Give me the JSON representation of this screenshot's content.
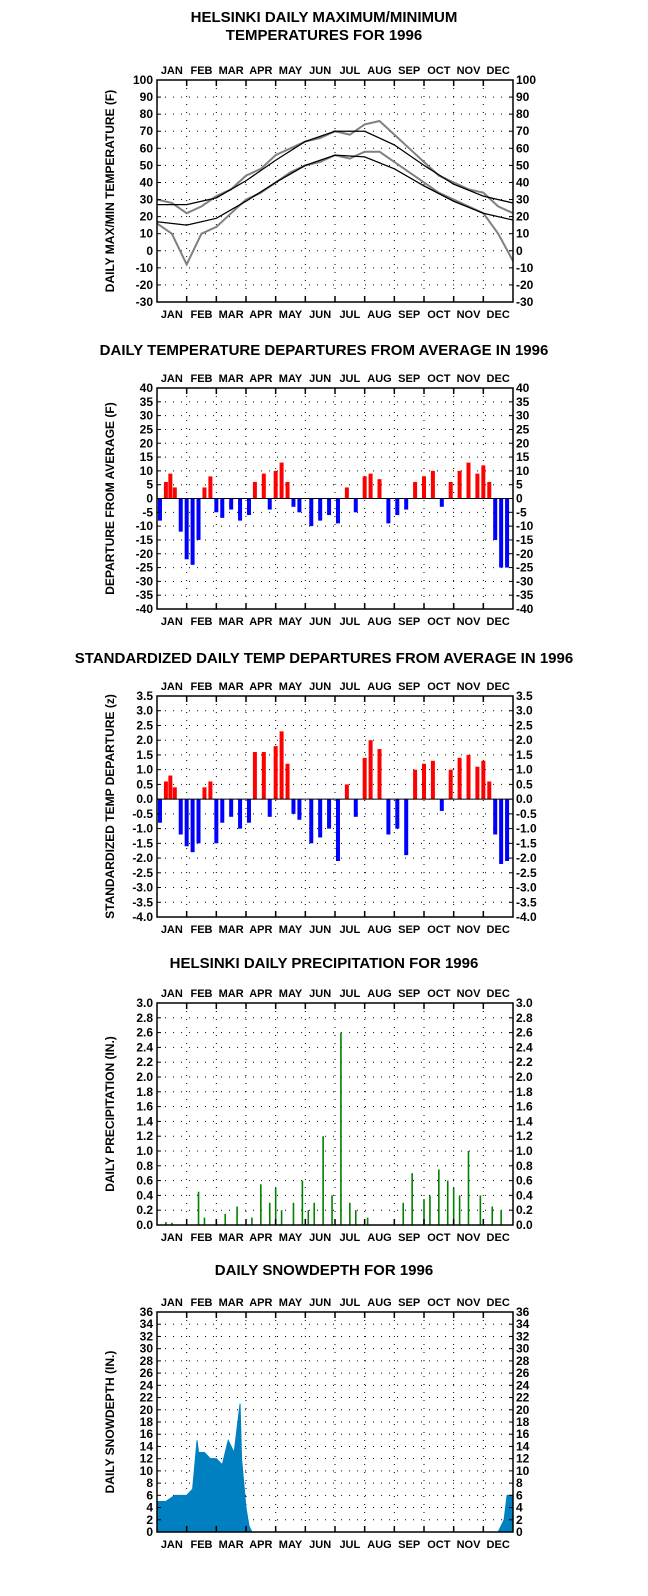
{
  "months": [
    "JAN",
    "FEB",
    "MAR",
    "APR",
    "MAY",
    "JUN",
    "JUL",
    "AUG",
    "SEP",
    "OCT",
    "NOV",
    "DEC"
  ],
  "chart_data": [
    {
      "id": "temp",
      "type": "line",
      "title": "HELSINKI DAILY MAXIMUM/MINIMUM\nTEMPERATURES FOR 1996",
      "ylabel": "DAILY MAX/MIN TEMPERATURE (F)",
      "ylim": [
        -30,
        100
      ],
      "yticks": [
        -30,
        -20,
        -10,
        0,
        10,
        20,
        30,
        40,
        50,
        60,
        70,
        80,
        90,
        100
      ],
      "grid": true,
      "colors": {
        "observed": "#808080",
        "normal": "#000000"
      },
      "x_unit": "month",
      "series": [
        {
          "role": "observed_max",
          "x": [
            0,
            0.5,
            1,
            1.5,
            2,
            2.5,
            3,
            3.5,
            4,
            4.5,
            5,
            5.5,
            6,
            6.5,
            7,
            7.5,
            8,
            8.5,
            9,
            9.5,
            10,
            10.5,
            11,
            11.5,
            12
          ],
          "values": [
            30,
            28,
            22,
            26,
            32,
            36,
            44,
            48,
            56,
            60,
            64,
            66,
            70,
            68,
            74,
            76,
            68,
            60,
            52,
            44,
            40,
            36,
            34,
            26,
            22
          ]
        },
        {
          "role": "observed_min",
          "x": [
            0,
            0.5,
            1,
            1.5,
            2,
            2.5,
            3,
            3.5,
            4,
            4.5,
            5,
            5.5,
            6,
            6.5,
            7,
            7.5,
            8,
            8.5,
            9,
            9.5,
            10,
            10.5,
            11,
            11.5,
            12
          ],
          "values": [
            16,
            10,
            -8,
            10,
            14,
            22,
            30,
            34,
            40,
            46,
            50,
            52,
            56,
            54,
            58,
            58,
            52,
            46,
            40,
            34,
            30,
            26,
            22,
            10,
            -6
          ]
        },
        {
          "role": "normal_max",
          "x": [
            0,
            1,
            2,
            3,
            4,
            5,
            6,
            7,
            8,
            9,
            10,
            11,
            12
          ],
          "values": [
            27,
            27,
            31,
            41,
            53,
            64,
            70,
            70,
            62,
            50,
            39,
            32,
            28
          ]
        },
        {
          "role": "normal_min",
          "x": [
            0,
            1,
            2,
            3,
            4,
            5,
            6,
            7,
            8,
            9,
            10,
            11,
            12
          ],
          "values": [
            17,
            15,
            19,
            29,
            40,
            50,
            56,
            55,
            48,
            38,
            29,
            22,
            18
          ]
        }
      ]
    },
    {
      "id": "dep",
      "type": "bar",
      "title": "DAILY TEMPERATURE DEPARTURES FROM AVERAGE IN 1996",
      "ylabel": "DEPARTURE FROM AVERAGE (F)",
      "ylim": [
        -40,
        40
      ],
      "yticks": [
        -40,
        -35,
        -30,
        -25,
        -20,
        -15,
        -10,
        -5,
        0,
        5,
        10,
        15,
        20,
        25,
        30,
        35,
        40
      ],
      "grid": true,
      "colors": {
        "positive": "#ff0000",
        "negative": "#0000ff"
      },
      "x_unit": "month",
      "x": [
        0.1,
        0.3,
        0.45,
        0.6,
        0.8,
        1.0,
        1.2,
        1.4,
        1.6,
        1.8,
        2.0,
        2.2,
        2.5,
        2.8,
        3.1,
        3.3,
        3.6,
        3.8,
        4.0,
        4.2,
        4.4,
        4.6,
        4.8,
        5.2,
        5.5,
        5.8,
        6.1,
        6.4,
        6.7,
        7.0,
        7.2,
        7.5,
        7.8,
        8.1,
        8.4,
        8.7,
        9.0,
        9.3,
        9.6,
        9.9,
        10.2,
        10.5,
        10.8,
        11.0,
        11.2,
        11.4,
        11.6,
        11.8
      ],
      "values": [
        -8,
        6,
        9,
        4,
        -12,
        -22,
        -24,
        -15,
        4,
        8,
        -5,
        -7,
        -4,
        -8,
        -6,
        6,
        9,
        -4,
        10,
        13,
        6,
        -3,
        -5,
        -10,
        -8,
        -6,
        -9,
        4,
        -5,
        8,
        9,
        7,
        -9,
        -6,
        -4,
        6,
        8,
        10,
        -3,
        6,
        10,
        13,
        9,
        12,
        6,
        -15,
        -25,
        -25
      ]
    },
    {
      "id": "zdep",
      "type": "bar",
      "title": "STANDARDIZED DAILY TEMP DEPARTURES FROM AVERAGE IN 1996",
      "ylabel": "STANDARDIZED TEMP DEPARTURE (z)",
      "ylim": [
        -4,
        3.5
      ],
      "yticks": [
        -4.0,
        -3.5,
        -3.0,
        -2.5,
        -2.0,
        -1.5,
        -1.0,
        -0.5,
        0.0,
        0.5,
        1.0,
        1.5,
        2.0,
        2.5,
        3.0,
        3.5
      ],
      "grid": true,
      "colors": {
        "positive": "#ff0000",
        "negative": "#0000ff"
      },
      "x_unit": "month",
      "x": [
        0.1,
        0.3,
        0.45,
        0.6,
        0.8,
        1.0,
        1.2,
        1.4,
        1.6,
        1.8,
        2.0,
        2.2,
        2.5,
        2.8,
        3.1,
        3.3,
        3.6,
        3.8,
        4.0,
        4.2,
        4.4,
        4.6,
        4.8,
        5.2,
        5.5,
        5.8,
        6.1,
        6.4,
        6.7,
        7.0,
        7.2,
        7.5,
        7.8,
        8.1,
        8.4,
        8.7,
        9.0,
        9.3,
        9.6,
        9.9,
        10.2,
        10.5,
        10.8,
        11.0,
        11.2,
        11.4,
        11.6,
        11.8
      ],
      "values": [
        -0.8,
        0.6,
        0.8,
        0.4,
        -1.2,
        -1.6,
        -1.8,
        -1.5,
        0.4,
        0.6,
        -1.5,
        -0.8,
        -0.6,
        -1.0,
        -0.8,
        1.6,
        1.6,
        -0.6,
        1.8,
        2.3,
        1.2,
        -0.5,
        -0.7,
        -1.5,
        -1.3,
        -1.0,
        -2.1,
        0.5,
        -0.6,
        1.4,
        2.0,
        1.7,
        -1.2,
        -1.0,
        -1.9,
        1.0,
        1.2,
        1.3,
        -0.4,
        1.0,
        1.4,
        1.5,
        1.1,
        1.3,
        0.6,
        -1.2,
        -2.2,
        -2.1
      ]
    },
    {
      "id": "precip",
      "type": "bar",
      "title": "HELSINKI DAILY PRECIPITATION FOR 1996",
      "ylabel": "DAILY PRECIPITATION (IN.)",
      "ylim": [
        0,
        3.0
      ],
      "yticks": [
        0.0,
        0.2,
        0.4,
        0.6,
        0.8,
        1.0,
        1.2,
        1.4,
        1.6,
        1.8,
        2.0,
        2.2,
        2.4,
        2.6,
        2.8,
        3.0
      ],
      "grid": true,
      "colors": {
        "bars": "#008000"
      },
      "x_unit": "month",
      "x": [
        0.3,
        0.5,
        1.4,
        1.6,
        2.0,
        2.3,
        2.7,
        3.2,
        3.5,
        3.8,
        4.0,
        4.2,
        4.6,
        4.9,
        5.1,
        5.3,
        5.6,
        5.9,
        6.2,
        6.5,
        6.7,
        7.1,
        8.3,
        8.6,
        9.0,
        9.2,
        9.5,
        9.8,
        10.0,
        10.2,
        10.5,
        10.9,
        11.3,
        11.6
      ],
      "values": [
        0.04,
        0.03,
        0.45,
        0.1,
        0.05,
        0.15,
        0.25,
        0.1,
        0.55,
        0.3,
        0.5,
        0.2,
        0.3,
        0.6,
        0.2,
        0.3,
        1.2,
        0.4,
        2.6,
        0.3,
        0.2,
        0.1,
        0.3,
        0.7,
        0.35,
        0.4,
        0.75,
        0.6,
        0.5,
        0.4,
        1.0,
        0.4,
        0.25,
        0.2
      ]
    },
    {
      "id": "snow",
      "type": "area",
      "title": "DAILY SNOWDEPTH FOR 1996",
      "ylabel": "DAILY SNOWDEPTH (IN.)",
      "ylim": [
        0,
        36
      ],
      "yticks": [
        0,
        2,
        4,
        6,
        8,
        10,
        12,
        14,
        16,
        18,
        20,
        22,
        24,
        26,
        28,
        30,
        32,
        34,
        36
      ],
      "grid": true,
      "colors": {
        "fill": "#0080c0"
      },
      "x_unit": "month",
      "x": [
        0,
        0.3,
        0.6,
        0.9,
        1.0,
        1.2,
        1.35,
        1.4,
        1.6,
        1.8,
        2.0,
        2.2,
        2.4,
        2.6,
        2.8,
        2.85,
        3.0,
        3.1,
        3.2,
        11.5,
        11.7,
        11.8,
        12.0
      ],
      "values": [
        5,
        5,
        6,
        6,
        6,
        7,
        15,
        13,
        13,
        12,
        12,
        11,
        15,
        13,
        21,
        12,
        4,
        1,
        0,
        0,
        2,
        6,
        6
      ]
    }
  ]
}
